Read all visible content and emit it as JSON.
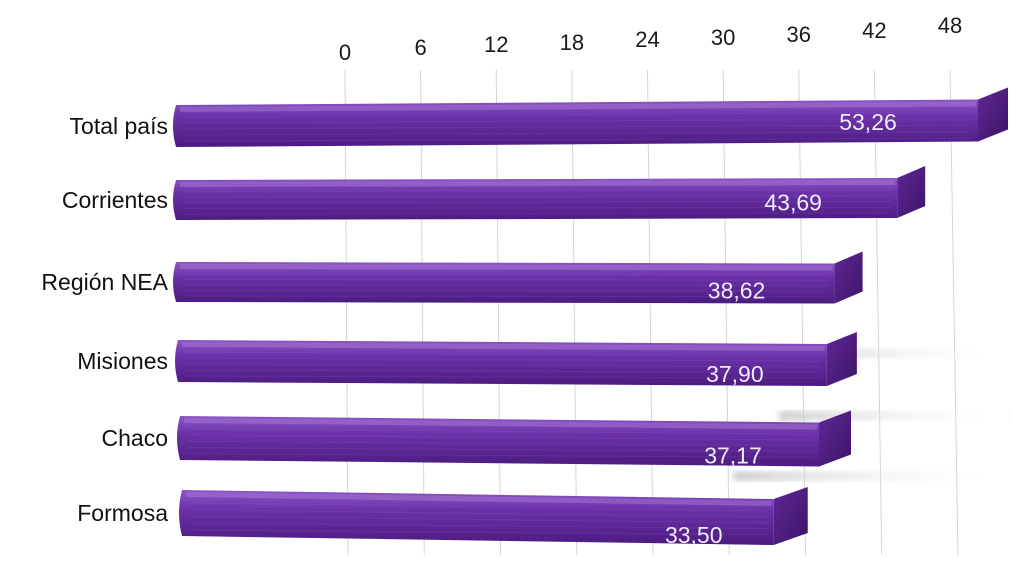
{
  "chart_data": {
    "type": "bar",
    "orientation": "horizontal",
    "categories": [
      "Total país",
      "Corrientes",
      "Región NEA",
      "Misiones",
      "Chaco",
      "Formosa"
    ],
    "values": [
      53.26,
      43.69,
      38.62,
      37.9,
      37.17,
      33.5
    ],
    "value_labels": [
      "53,26",
      "43,69",
      "38,62",
      "37,90",
      "37,17",
      "33,50"
    ],
    "x_ticks": [
      "0",
      "6",
      "12",
      "18",
      "24",
      "30",
      "36",
      "42",
      "48"
    ],
    "x_tick_values": [
      0,
      6,
      12,
      18,
      24,
      30,
      36,
      42,
      48
    ],
    "xlim": [
      0,
      48
    ],
    "grid": true,
    "bar_color": "#6a2fa0",
    "bar_color_dark": "#4a1a78",
    "bar_color_light": "#8a55c4",
    "title": "",
    "xlabel": "",
    "ylabel": ""
  }
}
